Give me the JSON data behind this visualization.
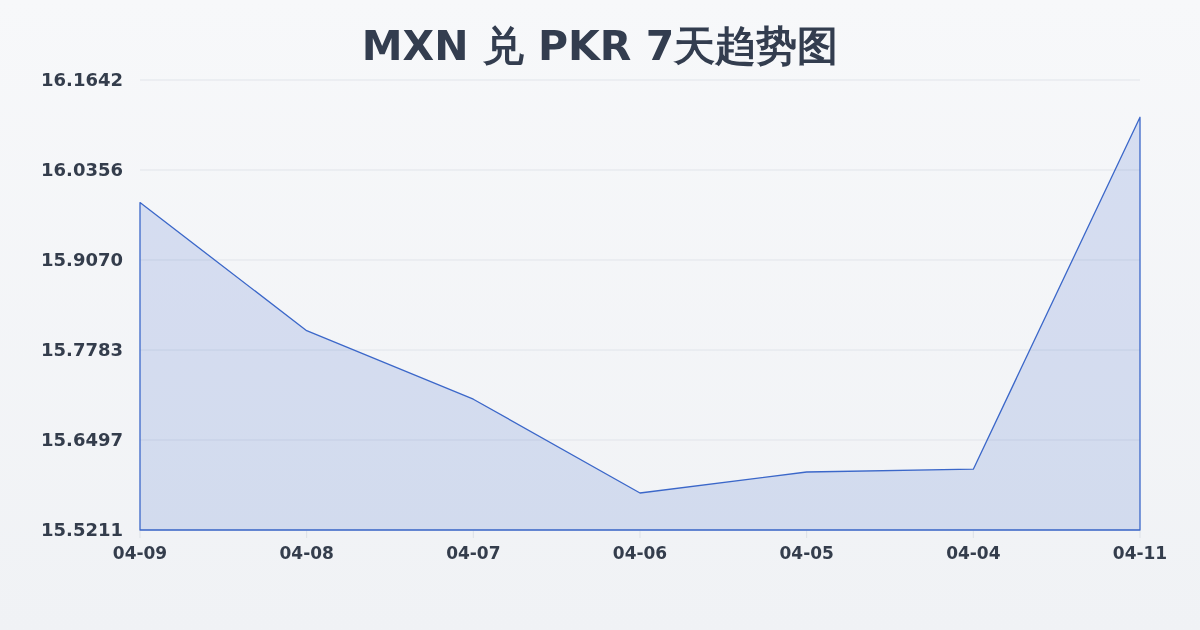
{
  "chart_data": {
    "type": "area",
    "title": "MXN 兑 PKR 7天趋势图",
    "categories": [
      "04-09",
      "04-08",
      "04-07",
      "04-06",
      "04-05",
      "04-04",
      "04-11"
    ],
    "series": [
      {
        "color": "#3b67c9",
        "values": [
          15.989,
          15.806,
          15.708,
          15.574,
          15.604,
          15.608,
          16.111
        ]
      }
    ],
    "ylim": [
      15.5211,
      16.1642
    ],
    "yticks": [
      15.5211,
      15.6497,
      15.7783,
      {
        "value": 15.907,
        "label": "15.9070"
      },
      16.0356,
      16.1642
    ],
    "grid": "y"
  }
}
